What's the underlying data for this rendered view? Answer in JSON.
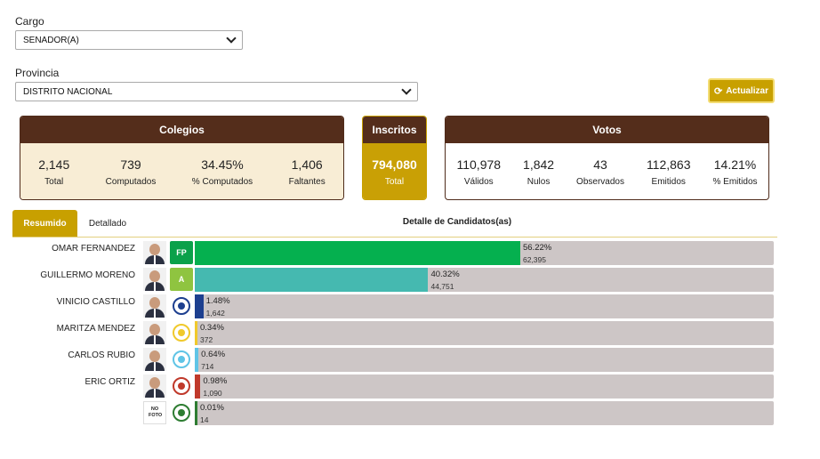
{
  "filters": {
    "cargo_label": "Cargo",
    "cargo_value": "SENADOR(A)",
    "provincia_label": "Provincia",
    "provincia_value": "DISTRITO NACIONAL",
    "update_label": "Actualizar"
  },
  "colegios": {
    "title": "Colegios",
    "stats": [
      {
        "value": "2,145",
        "label": "Total"
      },
      {
        "value": "739",
        "label": "Computados"
      },
      {
        "value": "34.45%",
        "label": "% Computados"
      },
      {
        "value": "1,406",
        "label": "Faltantes"
      }
    ]
  },
  "inscritos": {
    "title": "Inscritos",
    "value": "794,080",
    "label": "Total"
  },
  "votos": {
    "title": "Votos",
    "stats": [
      {
        "value": "110,978",
        "label": "Válidos"
      },
      {
        "value": "1,842",
        "label": "Nulos"
      },
      {
        "value": "43",
        "label": "Observados"
      },
      {
        "value": "112,863",
        "label": "Emitidos"
      },
      {
        "value": "14.21%",
        "label": "% Emitidos"
      }
    ]
  },
  "tabs": [
    {
      "label": "Resumido",
      "active": true
    },
    {
      "label": "Detallado",
      "active": false
    }
  ],
  "detail_title": "Detalle de Candidatos(as)",
  "candidates": [
    {
      "name": "OMAR FERNANDEZ",
      "pct": "56.22%",
      "votes": "62,395",
      "share": 56.22,
      "color": "#05b04f",
      "logo_color": "#0aa14a",
      "logo_text": "FP"
    },
    {
      "name": "GUILLERMO MORENO",
      "pct": "40.32%",
      "votes": "44,751",
      "share": 40.32,
      "color": "#45b9b0",
      "logo_color": "#8fc440",
      "logo_text": "A"
    },
    {
      "name": "VINICIO CASTILLO",
      "pct": "1.48%",
      "votes": "1,642",
      "share": 1.48,
      "color": "#1d3f8f",
      "logo_color": "#ffffff",
      "logo_text": ""
    },
    {
      "name": "MARITZA MENDEZ",
      "pct": "0.34%",
      "votes": "372",
      "share": 0.34,
      "color": "#f0c92c",
      "logo_color": "#ffffff",
      "logo_text": ""
    },
    {
      "name": "CARLOS RUBIO",
      "pct": "0.64%",
      "votes": "714",
      "share": 0.64,
      "color": "#5fc4e6",
      "logo_color": "#ffffff",
      "logo_text": ""
    },
    {
      "name": "ERIC ORTIZ",
      "pct": "0.98%",
      "votes": "1,090",
      "share": 0.98,
      "color": "#c0392b",
      "logo_color": "#ffffff",
      "logo_text": ""
    },
    {
      "name": "",
      "pct": "0.01%",
      "votes": "14",
      "share": 0.01,
      "color": "#2e7d32",
      "logo_color": "#ffffff",
      "logo_text": "",
      "no_foto": "NO FOTO"
    }
  ]
}
